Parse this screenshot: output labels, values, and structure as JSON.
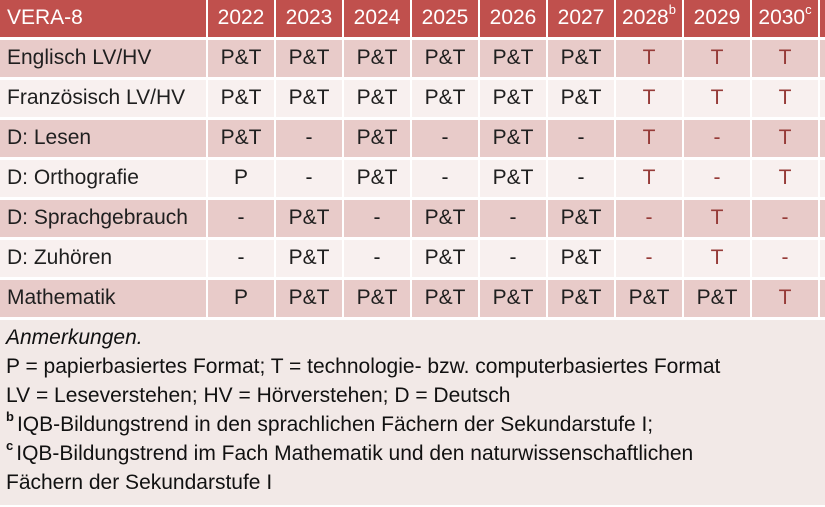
{
  "colors": {
    "accent": "#C0504D",
    "band_dark": "#E8CBC9",
    "band_light": "#F8F0EF",
    "notes_bg": "#F2E9E7",
    "red_text": "#963B38",
    "header_text": "#FFFFFF",
    "cell_text": "#1F1F1F"
  },
  "table": {
    "title": "VERA-8",
    "years": [
      {
        "label": "2022",
        "sup": ""
      },
      {
        "label": "2023",
        "sup": ""
      },
      {
        "label": "2024",
        "sup": ""
      },
      {
        "label": "2025",
        "sup": ""
      },
      {
        "label": "2026",
        "sup": ""
      },
      {
        "label": "2027",
        "sup": ""
      },
      {
        "label": "2028",
        "sup": "b"
      },
      {
        "label": "2029",
        "sup": ""
      },
      {
        "label": "2030",
        "sup": "c"
      }
    ],
    "rows": [
      {
        "label": "Englisch LV/HV",
        "cells": [
          {
            "v": "P&T",
            "red": false
          },
          {
            "v": "P&T",
            "red": false
          },
          {
            "v": "P&T",
            "red": false
          },
          {
            "v": "P&T",
            "red": false
          },
          {
            "v": "P&T",
            "red": false
          },
          {
            "v": "P&T",
            "red": false
          },
          {
            "v": "T",
            "red": true
          },
          {
            "v": "T",
            "red": true
          },
          {
            "v": "T",
            "red": true
          }
        ]
      },
      {
        "label": "Französisch LV/HV",
        "cells": [
          {
            "v": "P&T",
            "red": false
          },
          {
            "v": "P&T",
            "red": false
          },
          {
            "v": "P&T",
            "red": false
          },
          {
            "v": "P&T",
            "red": false
          },
          {
            "v": "P&T",
            "red": false
          },
          {
            "v": "P&T",
            "red": false
          },
          {
            "v": "T",
            "red": true
          },
          {
            "v": "T",
            "red": true
          },
          {
            "v": "T",
            "red": true
          }
        ]
      },
      {
        "label": "D: Lesen",
        "cells": [
          {
            "v": "P&T",
            "red": false
          },
          {
            "v": "-",
            "red": false
          },
          {
            "v": "P&T",
            "red": false
          },
          {
            "v": "-",
            "red": false
          },
          {
            "v": "P&T",
            "red": false
          },
          {
            "v": "-",
            "red": false
          },
          {
            "v": "T",
            "red": true
          },
          {
            "v": "-",
            "red": true
          },
          {
            "v": "T",
            "red": true
          }
        ]
      },
      {
        "label": "D: Orthografie",
        "cells": [
          {
            "v": "P",
            "red": false
          },
          {
            "v": "-",
            "red": false
          },
          {
            "v": "P&T",
            "red": false
          },
          {
            "v": "-",
            "red": false
          },
          {
            "v": "P&T",
            "red": false
          },
          {
            "v": "-",
            "red": false
          },
          {
            "v": "T",
            "red": true
          },
          {
            "v": "-",
            "red": true
          },
          {
            "v": "T",
            "red": true
          }
        ]
      },
      {
        "label": "D: Sprachgebrauch",
        "cells": [
          {
            "v": "-",
            "red": false
          },
          {
            "v": "P&T",
            "red": false
          },
          {
            "v": "-",
            "red": false
          },
          {
            "v": "P&T",
            "red": false
          },
          {
            "v": "-",
            "red": false
          },
          {
            "v": "P&T",
            "red": false
          },
          {
            "v": "-",
            "red": true
          },
          {
            "v": "T",
            "red": true
          },
          {
            "v": "-",
            "red": true
          }
        ]
      },
      {
        "label": "D: Zuhören",
        "cells": [
          {
            "v": "-",
            "red": false
          },
          {
            "v": "P&T",
            "red": false
          },
          {
            "v": "-",
            "red": false
          },
          {
            "v": "P&T",
            "red": false
          },
          {
            "v": "-",
            "red": false
          },
          {
            "v": "P&T",
            "red": false
          },
          {
            "v": "-",
            "red": true
          },
          {
            "v": "T",
            "red": true
          },
          {
            "v": "-",
            "red": true
          }
        ]
      },
      {
        "label": "Mathematik",
        "cells": [
          {
            "v": "P",
            "red": false
          },
          {
            "v": "P&T",
            "red": false
          },
          {
            "v": "P&T",
            "red": false
          },
          {
            "v": "P&T",
            "red": false
          },
          {
            "v": "P&T",
            "red": false
          },
          {
            "v": "P&T",
            "red": false
          },
          {
            "v": "P&T",
            "red": false
          },
          {
            "v": "P&T",
            "red": false
          },
          {
            "v": "T",
            "red": true
          }
        ]
      }
    ]
  },
  "notes": {
    "lines": [
      {
        "sup": "",
        "text": "Anmerkungen."
      },
      {
        "sup": "",
        "text": "P = papierbasiertes Format; T = technologie- bzw. computerbasiertes Format"
      },
      {
        "sup": "",
        "text": "LV = Leseverstehen; HV = Hörverstehen; D = Deutsch"
      },
      {
        "sup": "b",
        "text": "IQB-Bildungstrend in den sprachlichen Fächern der Sekundarstufe I;"
      },
      {
        "sup": "c",
        "text": "IQB-Bildungstrend im Fach Mathematik und den naturwissenschaftlichen"
      },
      {
        "sup": "",
        "text": "Fächern der Sekundarstufe I"
      }
    ]
  }
}
